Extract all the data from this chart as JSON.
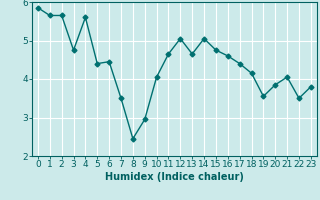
{
  "x": [
    0,
    1,
    2,
    3,
    4,
    5,
    6,
    7,
    8,
    9,
    10,
    11,
    12,
    13,
    14,
    15,
    16,
    17,
    18,
    19,
    20,
    21,
    22,
    23
  ],
  "y": [
    5.85,
    5.65,
    5.65,
    4.75,
    5.6,
    4.4,
    4.45,
    3.5,
    2.45,
    2.95,
    4.05,
    4.65,
    5.05,
    4.65,
    5.05,
    4.75,
    4.6,
    4.4,
    4.15,
    3.55,
    3.85,
    4.05,
    3.5,
    3.8
  ],
  "line_color": "#007070",
  "marker": "D",
  "markersize": 2.5,
  "linewidth": 1.0,
  "xlabel": "Humidex (Indice chaleur)",
  "xlim": [
    -0.5,
    23.5
  ],
  "ylim": [
    2,
    6
  ],
  "yticks": [
    2,
    3,
    4,
    5,
    6
  ],
  "xticks": [
    0,
    1,
    2,
    3,
    4,
    5,
    6,
    7,
    8,
    9,
    10,
    11,
    12,
    13,
    14,
    15,
    16,
    17,
    18,
    19,
    20,
    21,
    22,
    23
  ],
  "bg_color": "#cceaea",
  "grid_color": "#ffffff",
  "tick_color": "#006060",
  "label_color": "#006060",
  "xlabel_fontsize": 7,
  "tick_fontsize": 6.5
}
